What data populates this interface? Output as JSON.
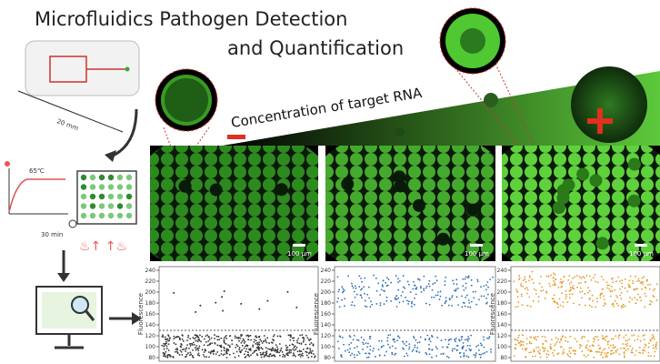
{
  "header": {
    "title_line1": "Microfluidics Pathogen Detection",
    "title_line2": "and Quantification"
  },
  "device": {
    "scale": "20 mm"
  },
  "heating": {
    "temperature": "65℃",
    "time": "30 min"
  },
  "gradient": {
    "label": "Concentration of target RNA"
  },
  "micrographs": [
    {
      "scale_bar": "100 µm"
    },
    {
      "scale_bar": "100 µm"
    },
    {
      "scale_bar": "100 µm"
    }
  ],
  "plots": [
    {
      "y_label": "Fluorescence",
      "ylim": [
        80,
        240
      ],
      "yticks": [
        80,
        100,
        120,
        140,
        160,
        180,
        200,
        220,
        240
      ]
    },
    {
      "y_label": "Fluorescence",
      "ylim": [
        80,
        240
      ],
      "yticks": [
        80,
        100,
        120,
        140,
        160,
        180,
        200,
        220,
        240
      ]
    },
    {
      "y_label": "Fluorescence",
      "ylim": [
        80,
        240
      ],
      "yticks": [
        80,
        100,
        120,
        140,
        160,
        180,
        200,
        220,
        240
      ]
    }
  ]
}
